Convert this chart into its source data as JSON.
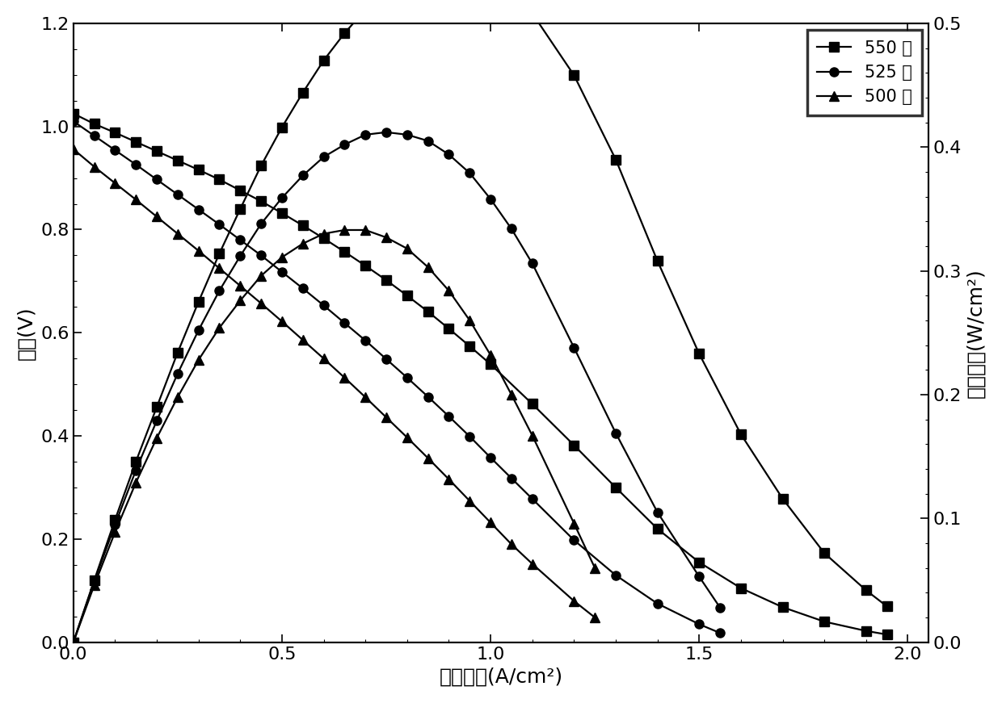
{
  "voltage_550_x": [
    0.0,
    0.05,
    0.1,
    0.15,
    0.2,
    0.25,
    0.3,
    0.35,
    0.4,
    0.45,
    0.5,
    0.55,
    0.6,
    0.65,
    0.7,
    0.75,
    0.8,
    0.85,
    0.9,
    0.95,
    1.0,
    1.1,
    1.2,
    1.3,
    1.4,
    1.5,
    1.6,
    1.7,
    1.8,
    1.9,
    1.95
  ],
  "voltage_550_y": [
    1.025,
    1.005,
    0.988,
    0.97,
    0.952,
    0.934,
    0.916,
    0.897,
    0.876,
    0.855,
    0.832,
    0.808,
    0.783,
    0.757,
    0.73,
    0.702,
    0.672,
    0.641,
    0.608,
    0.574,
    0.539,
    0.462,
    0.382,
    0.3,
    0.22,
    0.155,
    0.105,
    0.068,
    0.04,
    0.022,
    0.015
  ],
  "voltage_525_x": [
    0.0,
    0.05,
    0.1,
    0.15,
    0.2,
    0.25,
    0.3,
    0.35,
    0.4,
    0.45,
    0.5,
    0.55,
    0.6,
    0.65,
    0.7,
    0.75,
    0.8,
    0.85,
    0.9,
    0.95,
    1.0,
    1.05,
    1.1,
    1.2,
    1.3,
    1.4,
    1.5,
    1.55
  ],
  "voltage_525_y": [
    1.01,
    0.982,
    0.954,
    0.926,
    0.897,
    0.868,
    0.839,
    0.81,
    0.78,
    0.75,
    0.718,
    0.686,
    0.653,
    0.619,
    0.585,
    0.549,
    0.513,
    0.476,
    0.438,
    0.399,
    0.358,
    0.318,
    0.278,
    0.198,
    0.13,
    0.075,
    0.035,
    0.018
  ],
  "voltage_500_x": [
    0.0,
    0.05,
    0.1,
    0.15,
    0.2,
    0.25,
    0.3,
    0.35,
    0.4,
    0.45,
    0.5,
    0.55,
    0.6,
    0.65,
    0.7,
    0.75,
    0.8,
    0.85,
    0.9,
    0.95,
    1.0,
    1.05,
    1.1,
    1.2,
    1.25
  ],
  "voltage_500_y": [
    0.956,
    0.922,
    0.89,
    0.858,
    0.825,
    0.792,
    0.759,
    0.725,
    0.691,
    0.657,
    0.622,
    0.586,
    0.55,
    0.513,
    0.475,
    0.436,
    0.397,
    0.357,
    0.316,
    0.274,
    0.232,
    0.19,
    0.152,
    0.08,
    0.048
  ],
  "power_550_x": [
    0.0,
    0.05,
    0.1,
    0.15,
    0.2,
    0.25,
    0.3,
    0.35,
    0.4,
    0.45,
    0.5,
    0.55,
    0.6,
    0.65,
    0.7,
    0.75,
    0.8,
    0.85,
    0.9,
    0.95,
    1.0,
    1.1,
    1.2,
    1.3,
    1.4,
    1.5,
    1.6,
    1.7,
    1.8,
    1.9,
    1.95
  ],
  "power_550_y": [
    0.0,
    0.05,
    0.099,
    0.146,
    0.19,
    0.234,
    0.275,
    0.314,
    0.35,
    0.385,
    0.416,
    0.444,
    0.47,
    0.492,
    0.511,
    0.527,
    0.538,
    0.545,
    0.547,
    0.545,
    0.539,
    0.508,
    0.458,
    0.39,
    0.308,
    0.233,
    0.168,
    0.116,
    0.072,
    0.042,
    0.029
  ],
  "power_525_x": [
    0.0,
    0.05,
    0.1,
    0.15,
    0.2,
    0.25,
    0.3,
    0.35,
    0.4,
    0.45,
    0.5,
    0.55,
    0.6,
    0.65,
    0.7,
    0.75,
    0.8,
    0.85,
    0.9,
    0.95,
    1.0,
    1.05,
    1.1,
    1.2,
    1.3,
    1.4,
    1.5,
    1.55
  ],
  "power_525_y": [
    0.0,
    0.049,
    0.095,
    0.139,
    0.179,
    0.217,
    0.252,
    0.284,
    0.312,
    0.338,
    0.359,
    0.377,
    0.392,
    0.402,
    0.41,
    0.412,
    0.41,
    0.405,
    0.394,
    0.379,
    0.358,
    0.334,
    0.306,
    0.238,
    0.169,
    0.105,
    0.053,
    0.028
  ],
  "power_500_x": [
    0.0,
    0.05,
    0.1,
    0.15,
    0.2,
    0.25,
    0.3,
    0.35,
    0.4,
    0.45,
    0.5,
    0.55,
    0.6,
    0.65,
    0.7,
    0.75,
    0.8,
    0.85,
    0.9,
    0.95,
    1.0,
    1.05,
    1.1,
    1.2,
    1.25
  ],
  "power_500_y": [
    0.0,
    0.046,
    0.089,
    0.129,
    0.165,
    0.198,
    0.228,
    0.254,
    0.276,
    0.296,
    0.311,
    0.322,
    0.33,
    0.333,
    0.333,
    0.327,
    0.318,
    0.303,
    0.284,
    0.26,
    0.232,
    0.2,
    0.167,
    0.096,
    0.06
  ],
  "xlabel": "电流密度(A/cm²)",
  "ylabel_left": "电压(V)",
  "ylabel_right": "功率密度(W/cm²)",
  "legend_labels": [
    "550 度",
    "525 度",
    "500 度"
  ],
  "xlim": [
    0.0,
    2.05
  ],
  "ylim_left": [
    0.0,
    1.2
  ],
  "ylim_right": [
    0.0,
    0.5
  ],
  "xticks": [
    0.0,
    0.5,
    1.0,
    1.5,
    2.0
  ],
  "yticks_left": [
    0.0,
    0.2,
    0.4,
    0.6,
    0.8,
    1.0,
    1.2
  ],
  "yticks_right": [
    0.0,
    0.1,
    0.2,
    0.3,
    0.4,
    0.5
  ],
  "line_color": "#000000",
  "background_color": "#ffffff",
  "label_fontsize": 18,
  "tick_fontsize": 16,
  "legend_fontsize": 15
}
